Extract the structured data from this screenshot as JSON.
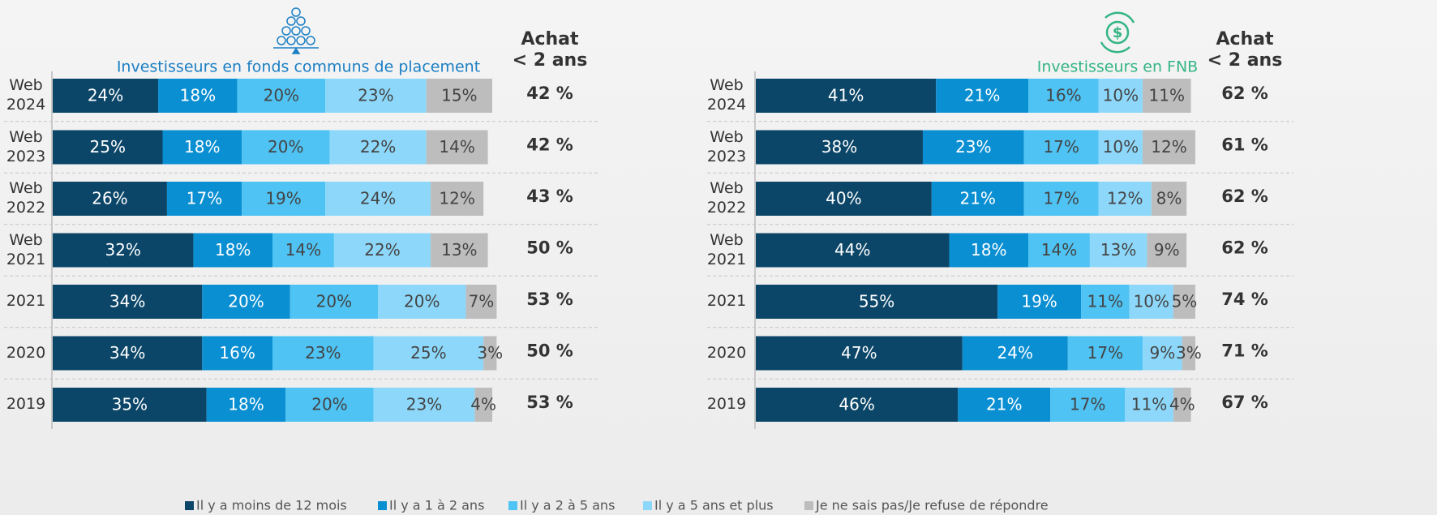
{
  "chart_data": [
    {
      "type": "bar",
      "orientation": "horizontal",
      "stacked": true,
      "title": "Investisseurs en fonds communs de placement",
      "title_color": "#1b7fc4",
      "column_header": "Achat\n< 2 ans",
      "categories": [
        "Web 2024",
        "Web 2023",
        "Web 2022",
        "Web 2021",
        "2021",
        "2020",
        "2019"
      ],
      "xlim": [
        0,
        100
      ],
      "series": [
        {
          "name": "Il y a moins de 12 mois",
          "color": "#0b4668",
          "values": [
            24,
            25,
            26,
            32,
            34,
            34,
            35
          ],
          "value_labels": [
            "24%",
            "25%",
            "26%",
            "32%",
            "34%",
            "34%",
            "35%"
          ]
        },
        {
          "name": "Il y a 1 à 2 ans",
          "color": "#0a8fd2",
          "values": [
            18,
            18,
            17,
            18,
            20,
            16,
            18
          ],
          "value_labels": [
            "18%",
            "18%",
            "17%",
            "18%",
            "20%",
            "16%",
            "18%"
          ]
        },
        {
          "name": "Il y a 2 à 5 ans",
          "color": "#4ec3f4",
          "values": [
            20,
            20,
            19,
            14,
            20,
            23,
            20
          ],
          "value_labels": [
            "20%",
            "20%",
            "19%",
            "14%",
            "20%",
            "23%",
            "20%"
          ]
        },
        {
          "name": "Il y a 5 ans et plus",
          "color": "#8dd8fa",
          "values": [
            23,
            22,
            24,
            22,
            20,
            25,
            23
          ],
          "value_labels": [
            "23%",
            "22%",
            "24%",
            "22%",
            "20%",
            "25%",
            "23%"
          ]
        },
        {
          "name": "Je ne sais pas/Je refuse de répondre",
          "color": "#bdbdbd",
          "values": [
            15,
            14,
            12,
            13,
            7,
            3,
            4
          ],
          "value_labels": [
            "15%",
            "14%",
            "12%",
            "13%",
            "7%",
            "3%",
            "4%"
          ]
        }
      ],
      "achat": {
        "values": [
          42,
          42,
          43,
          50,
          53,
          50,
          53
        ],
        "value_labels": [
          "42 %",
          "42 %",
          "43 %",
          "50 %",
          "53 %",
          "50 %",
          "53 %"
        ]
      }
    },
    {
      "type": "bar",
      "orientation": "horizontal",
      "stacked": true,
      "title": "Investisseurs en FNB",
      "title_color": "#35b585",
      "column_header": "Achat\n< 2 ans",
      "categories": [
        "Web 2024",
        "Web 2023",
        "Web 2022",
        "Web 2021",
        "2021",
        "2020",
        "2019"
      ],
      "xlim": [
        0,
        100
      ],
      "series": [
        {
          "color": "#0b4668",
          "values": [
            41,
            38,
            40,
            44,
            55,
            47,
            46
          ],
          "value_labels": [
            "41%",
            "38%",
            "40%",
            "44%",
            "55%",
            "47%",
            "46%"
          ]
        },
        {
          "color": "#0a8fd2",
          "values": [
            21,
            23,
            21,
            18,
            19,
            24,
            21
          ],
          "value_labels": [
            "21%",
            "23%",
            "21%",
            "18%",
            "19%",
            "24%",
            "21%"
          ]
        },
        {
          "color": "#4ec3f4",
          "values": [
            16,
            17,
            17,
            14,
            11,
            17,
            17
          ],
          "value_labels": [
            "16%",
            "17%",
            "17%",
            "14%",
            "11%",
            "17%",
            "17%"
          ]
        },
        {
          "color": "#8dd8fa",
          "values": [
            10,
            10,
            12,
            13,
            10,
            9,
            11
          ],
          "value_labels": [
            "10%",
            "10%",
            "12%",
            "13%",
            "10%",
            "9%",
            "11%"
          ]
        },
        {
          "color": "#bdbdbd",
          "values": [
            11,
            12,
            8,
            9,
            5,
            3,
            4
          ],
          "value_labels": [
            "11%",
            "12%",
            "8%",
            "9%",
            "5%",
            "3%",
            "4%"
          ]
        }
      ],
      "achat": {
        "values": [
          62,
          61,
          62,
          62,
          74,
          71,
          67
        ],
        "value_labels": [
          "62 %",
          "61 %",
          "62 %",
          "62 %",
          "74 %",
          "71 %",
          "67 %"
        ]
      }
    }
  ]
}
